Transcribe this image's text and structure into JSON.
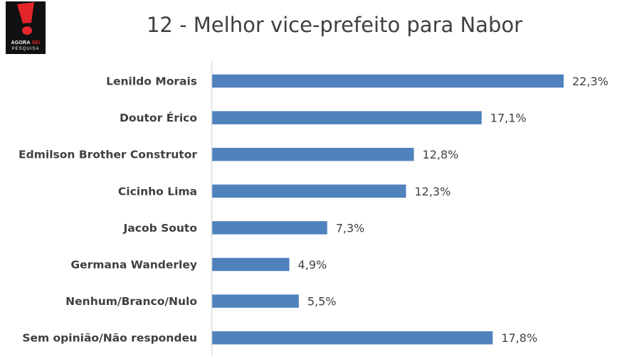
{
  "logo": {
    "brand_prefix": "AGORA",
    "brand_suffix": "SEI",
    "subtitle": "PESQUISA",
    "colors": {
      "background": "#111111",
      "accent": "#e4262a"
    }
  },
  "chart_data": {
    "type": "bar",
    "orientation": "horizontal",
    "title": "12 - Melhor vice-prefeito para Nabor",
    "categories": [
      "Lenildo Morais",
      "Doutor Érico",
      "Edmilson Brother Construtor",
      "Cicinho Lima",
      "Jacob Souto",
      "Germana Wanderley",
      "Nenhum/Branco/Nulo",
      "Sem opinião/Não respondeu"
    ],
    "values": [
      22.3,
      17.1,
      12.8,
      12.3,
      7.3,
      4.9,
      5.5,
      17.8
    ],
    "value_labels": [
      "22,3%",
      "17,1%",
      "12,8%",
      "12,3%",
      "7,3%",
      "4,9%",
      "5,5%",
      "17,8%"
    ],
    "xlim": [
      0,
      22.3
    ],
    "grid": false,
    "legend": "none",
    "bar_color": "#4f81bd",
    "text_color": "#404040",
    "axis_color": "#d9d9d9"
  }
}
